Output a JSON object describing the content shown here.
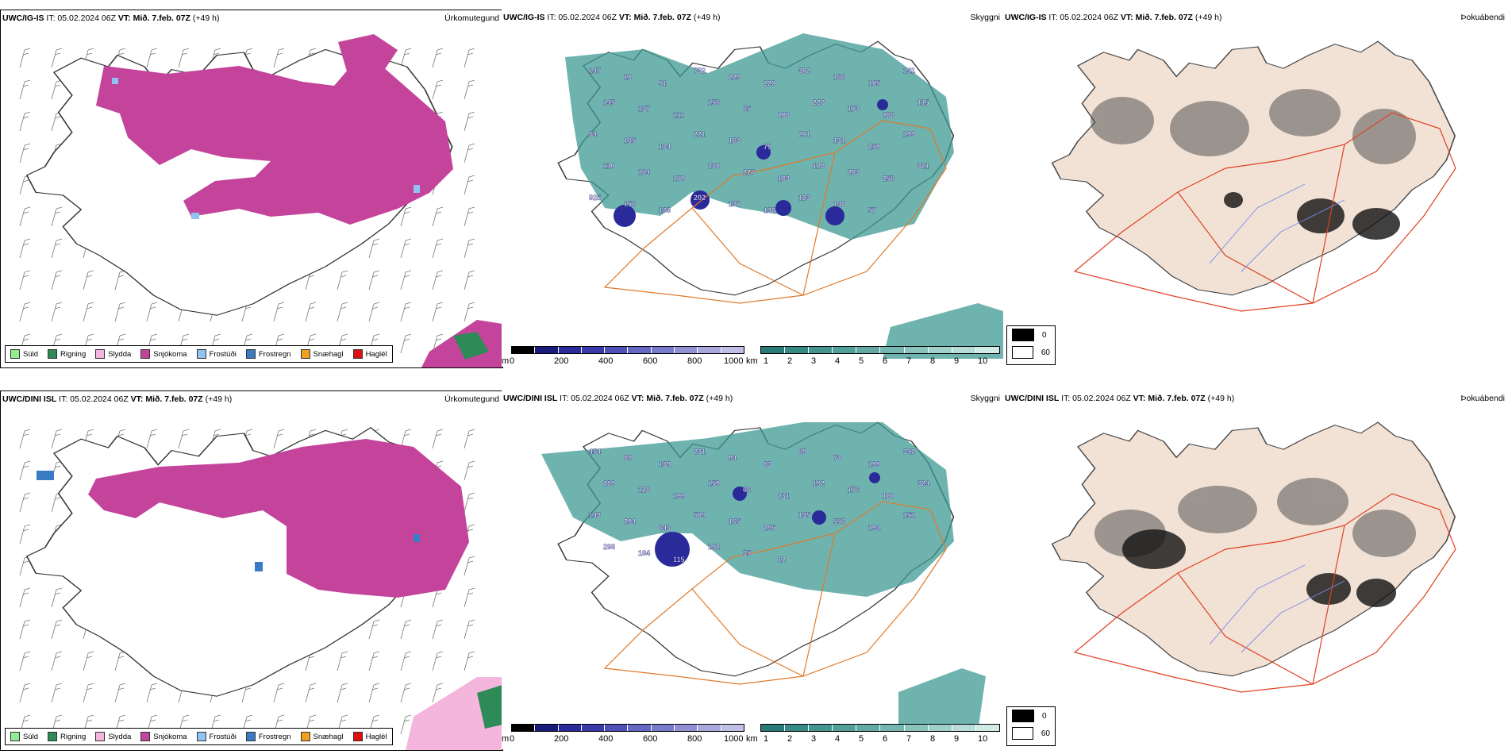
{
  "rows": [
    {
      "precip": {
        "model": "UWC/IG-IS",
        "it": "IT: 05.02.2024 06Z",
        "vt_label": "VT:",
        "vt": "Mið. 7.feb. 07Z",
        "lead": "(+49 h)",
        "title": "Úrkomutegund"
      },
      "cloud": {
        "model": "UWC/IG-IS",
        "it": "IT: 05.02.2024 06Z",
        "vt_label": "VT:",
        "vt": "Mið. 7.feb. 07Z",
        "lead": "(+49 h)",
        "title": "Skyggni"
      },
      "fog": {
        "model": "UWC/IG-IS",
        "it": "IT: 05.02.2024 06Z",
        "vt_label": "VT:",
        "vt": "Mið. 7.feb. 07Z",
        "lead": "(+49 h)",
        "title": "Þokuábendi"
      },
      "cloud_labels": [
        "147",
        "10",
        "91",
        "732",
        "229",
        "220",
        "302",
        "166",
        "105",
        "141",
        "145",
        "137",
        "111",
        "156",
        "65",
        "208",
        "228",
        "173",
        "288",
        "115",
        "84",
        "165",
        "134",
        "221",
        "163",
        "79",
        "201",
        "131",
        "259",
        "199",
        "110",
        "164",
        "179",
        "230",
        "227",
        "183",
        "128",
        "203",
        "256",
        "321",
        "925",
        "156",
        "133",
        "202",
        "137",
        "138",
        "123",
        "148",
        "57"
      ]
    },
    {
      "precip": {
        "model": "UWC/DINI ISL",
        "it": "IT: 05.02.2024 06Z",
        "vt_label": "VT:",
        "vt": "Mið. 7.feb. 07Z",
        "lead": "(+49 h)",
        "title": "Úrkomutegund"
      },
      "cloud": {
        "model": "UWC/DINI ISL",
        "it": "IT: 05.02.2024 06Z",
        "vt_label": "VT:",
        "vt": "Mið. 7.feb. 07Z",
        "lead": "(+49 h)",
        "title": "Skyggni"
      },
      "fog": {
        "model": "UWC/DINI ISL",
        "it": "IT: 05.02.2024 06Z",
        "vt_label": "VT:",
        "vt": "Mið. 7.feb. 07Z",
        "lead": "(+49 h)",
        "title": "Þokuábendi"
      },
      "cloud_labels": [
        "454",
        "89",
        "139",
        "231",
        "94",
        "83",
        "69",
        "73",
        "199",
        "342",
        "289",
        "128",
        "199",
        "159",
        "66",
        "231",
        "192",
        "176",
        "180",
        "324",
        "148",
        "294",
        "643",
        "509",
        "165",
        "295",
        "135",
        "556",
        "194",
        "151",
        "298",
        "184",
        "115",
        "192",
        "35",
        "12"
      ]
    }
  ],
  "legend": [
    {
      "label": "Súld",
      "color": "#90ee90"
    },
    {
      "label": "Rigning",
      "color": "#2e8b57"
    },
    {
      "label": "Slydda",
      "color": "#f4b6dc"
    },
    {
      "label": "Snjókoma",
      "color": "#c4449c"
    },
    {
      "label": "Frostúði",
      "color": "#8fc4f0"
    },
    {
      "label": "Frostregn",
      "color": "#3a7cc4"
    },
    {
      "label": "Snæhagl",
      "color": "#f0a020"
    },
    {
      "label": "Haglél",
      "color": "#e01010"
    }
  ],
  "cloudbase_scale": {
    "unit": "m",
    "ticks": [
      "0",
      "200",
      "400",
      "600",
      "800",
      "1000"
    ],
    "colors": [
      "#000000",
      "#1a1a7a",
      "#2a2a9a",
      "#3a3aaa",
      "#5050b8",
      "#6666c4",
      "#7a7acc",
      "#9090d4",
      "#a8a8dc",
      "#c0c0e6"
    ]
  },
  "visibility_scale": {
    "unit": "km",
    "ticks": [
      "1",
      "2",
      "3",
      "4",
      "5",
      "6",
      "7",
      "8",
      "9",
      "10"
    ],
    "colors": [
      "#2a7a78",
      "#358a86",
      "#449490",
      "#52a09a",
      "#63aaa4",
      "#76b6b0",
      "#8ac2bc",
      "#a0d0ca",
      "#b8ddd8",
      "#d0eae6"
    ]
  },
  "fog_scale": {
    "ticks": [
      "0",
      "60"
    ],
    "colors": [
      "#000000",
      "#ffffff"
    ]
  }
}
